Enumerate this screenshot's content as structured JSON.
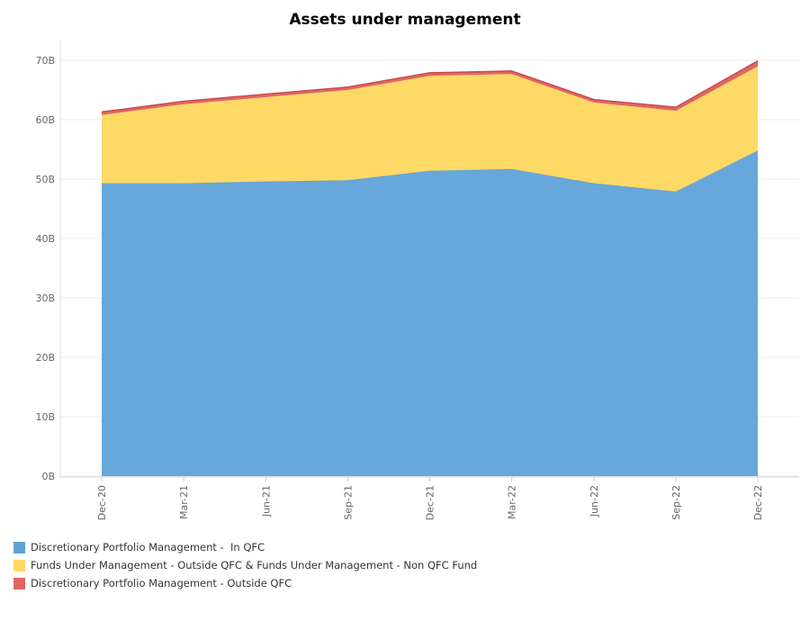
{
  "chart_data": {
    "type": "area",
    "stacked": true,
    "title": "Assets under management",
    "categories": [
      "Dec-20",
      "Mar-21",
      "Jun-21",
      "Sep-21",
      "Dec-21",
      "Mar-22",
      "Jun-22",
      "Sep-22",
      "Dec-22"
    ],
    "yticks": [
      "0B",
      "10B",
      "20B",
      "30B",
      "40B",
      "50B",
      "60B",
      "70B"
    ],
    "ylim": [
      0,
      70
    ],
    "grid": true,
    "legend_position": "bottom-left",
    "series": [
      {
        "name": "Discretionary Portfolio Management -  In QFC",
        "color": "#5FA2D8",
        "values": [
          49.3,
          49.3,
          49.6,
          49.8,
          51.4,
          51.7,
          49.3,
          47.9,
          54.8
        ]
      },
      {
        "name": "Funds Under Management - Outside QFC & Funds Under Management - Non QFC Fund",
        "color": "#FFD966",
        "values": [
          11.5,
          13.3,
          14.2,
          15.2,
          16.0,
          16.0,
          13.6,
          13.6,
          14.2
        ]
      },
      {
        "name": "Discretionary Portfolio Management - Outside QFC",
        "color": "#E06666",
        "values": [
          0.5,
          0.5,
          0.5,
          0.5,
          0.5,
          0.5,
          0.5,
          0.6,
          0.9
        ]
      }
    ]
  }
}
